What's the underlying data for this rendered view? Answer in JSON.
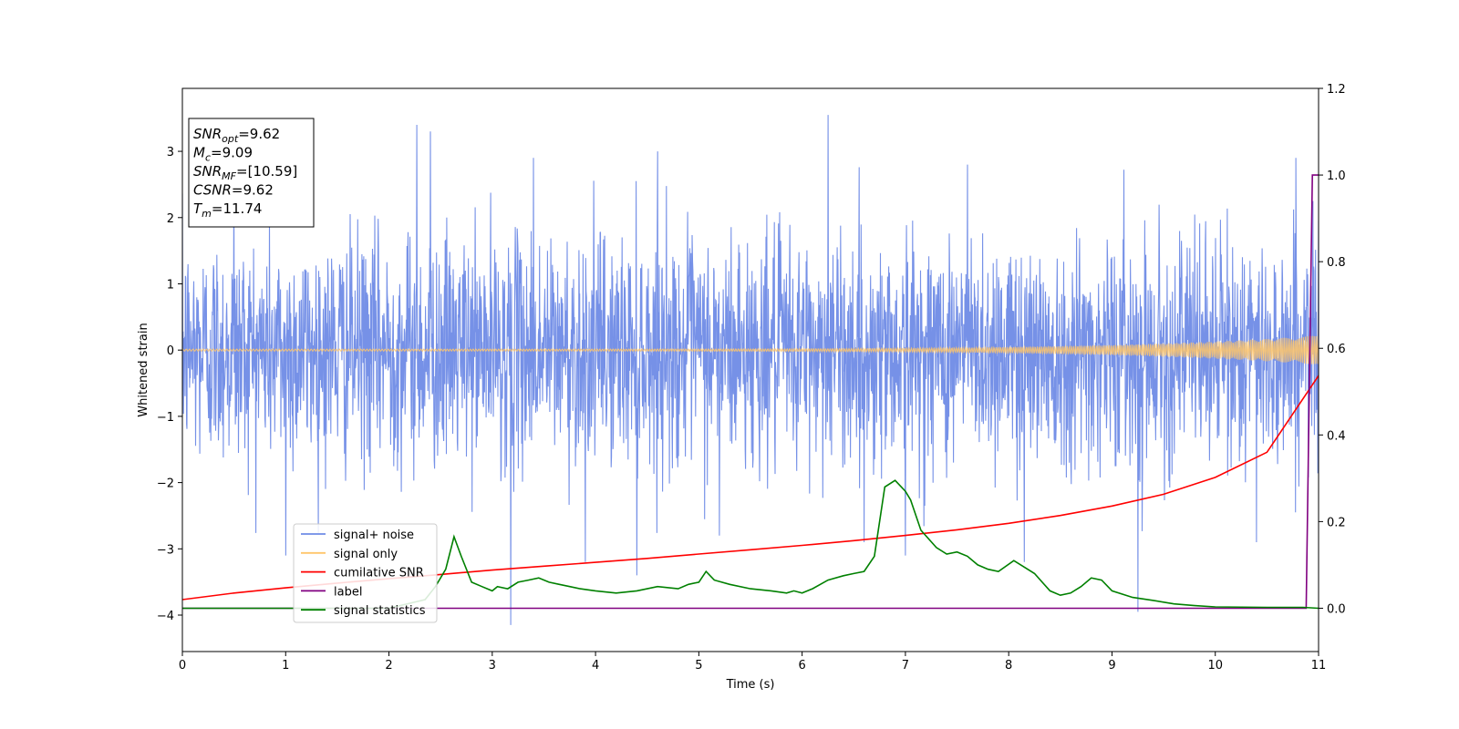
{
  "chart_data": {
    "type": "line",
    "title": "",
    "xlabel": "Time (s)",
    "ylabel": "Whitened strain",
    "y2label": "",
    "xlim": [
      0,
      11
    ],
    "ylim": [
      -4.55,
      3.95
    ],
    "y2lim": [
      -0.1,
      1.2
    ],
    "xticks": [
      "0",
      "1",
      "2",
      "3",
      "4",
      "5",
      "6",
      "7",
      "8",
      "9",
      "10",
      "11"
    ],
    "yticks": [
      "−4",
      "−3",
      "−2",
      "−1",
      "0",
      "1",
      "2",
      "3"
    ],
    "yticks_values": [
      -4,
      -3,
      -2,
      -1,
      0,
      1,
      2,
      3
    ],
    "y2ticks": [
      "0.0",
      "0.2",
      "0.4",
      "0.6",
      "0.8",
      "1.0",
      "1.2"
    ],
    "y2ticks_values": [
      0,
      0.2,
      0.4,
      0.6,
      0.8,
      1.0,
      1.2
    ],
    "grid": false,
    "legend_position": "lower-left",
    "annotation": {
      "lines": [
        {
          "var": "SNR",
          "sub": "opt",
          "text": "=9.62"
        },
        {
          "var": "M",
          "sub": "c",
          "text": "=9.09"
        },
        {
          "var": "SNR",
          "sub": "MF",
          "text": "=[10.59]"
        },
        {
          "var": "CSNR",
          "sub": "",
          "text": "=9.62"
        },
        {
          "var": "T",
          "sub": "m",
          "text": "=11.74"
        }
      ]
    },
    "series": [
      {
        "name": "signal+ noise",
        "axis": "left",
        "color": "#6f8be6",
        "noise_band": [
          -2.4,
          2.4
        ],
        "peaks": [
          [
            0.5,
            2.8
          ],
          [
            1.0,
            2.6
          ],
          [
            2.27,
            3.4
          ],
          [
            2.4,
            3.3
          ],
          [
            3.4,
            2.9
          ],
          [
            4.6,
            3.0
          ],
          [
            6.25,
            3.55
          ],
          [
            7.6,
            2.8
          ],
          [
            10.4,
            3.0
          ],
          [
            10.78,
            2.9
          ]
        ],
        "troughs": [
          [
            1.0,
            -3.1
          ],
          [
            3.18,
            -4.15
          ],
          [
            3.9,
            -3.2
          ],
          [
            4.4,
            -3.4
          ],
          [
            5.2,
            -2.8
          ],
          [
            6.6,
            -2.9
          ],
          [
            7.0,
            -3.1
          ],
          [
            8.15,
            -3.2
          ],
          [
            9.25,
            -3.95
          ],
          [
            10.4,
            -2.9
          ]
        ]
      },
      {
        "name": "signal only",
        "axis": "left",
        "color": "#ffc56a",
        "amplitude_start": 0.015,
        "amplitude_end": 0.22
      },
      {
        "name": "cumilative SNR",
        "axis": "right",
        "color": "#ff0000",
        "x": [
          0,
          0.5,
          1,
          1.5,
          2,
          2.5,
          3,
          3.5,
          4,
          4.5,
          5,
          5.5,
          6,
          6.5,
          7,
          7.5,
          8,
          8.5,
          9,
          9.5,
          10,
          10.5,
          11
        ],
        "y": [
          0.02,
          0.035,
          0.047,
          0.058,
          0.068,
          0.078,
          0.088,
          0.097,
          0.106,
          0.115,
          0.125,
          0.135,
          0.145,
          0.156,
          0.168,
          0.181,
          0.196,
          0.214,
          0.236,
          0.263,
          0.302,
          0.36,
          0.537
        ]
      },
      {
        "name": "label",
        "axis": "right",
        "color": "#800080",
        "x": [
          0,
          10.88,
          10.94,
          11.0
        ],
        "y": [
          0.0,
          0.0,
          1.0,
          1.0
        ]
      },
      {
        "name": "signal statistics",
        "axis": "right",
        "color": "#008000",
        "x": [
          0,
          1,
          2,
          2.35,
          2.45,
          2.55,
          2.63,
          2.7,
          2.8,
          2.9,
          3.0,
          3.05,
          3.15,
          3.25,
          3.35,
          3.45,
          3.55,
          3.65,
          3.75,
          3.85,
          4.0,
          4.2,
          4.4,
          4.6,
          4.8,
          4.9,
          5.0,
          5.07,
          5.15,
          5.3,
          5.5,
          5.7,
          5.85,
          5.92,
          6.0,
          6.1,
          6.25,
          6.4,
          6.5,
          6.6,
          6.7,
          6.8,
          6.9,
          7.0,
          7.05,
          7.15,
          7.3,
          7.4,
          7.5,
          7.6,
          7.7,
          7.8,
          7.9,
          8.05,
          8.15,
          8.25,
          8.4,
          8.5,
          8.6,
          8.7,
          8.8,
          8.9,
          9.0,
          9.2,
          9.4,
          9.6,
          9.8,
          10.0,
          10.5,
          10.85,
          11.0
        ],
        "y": [
          0.0,
          0.0,
          0.0,
          0.02,
          0.05,
          0.09,
          0.165,
          0.12,
          0.06,
          0.05,
          0.04,
          0.05,
          0.045,
          0.06,
          0.065,
          0.07,
          0.06,
          0.055,
          0.05,
          0.045,
          0.04,
          0.035,
          0.04,
          0.05,
          0.045,
          0.055,
          0.06,
          0.085,
          0.065,
          0.055,
          0.045,
          0.04,
          0.035,
          0.04,
          0.035,
          0.045,
          0.065,
          0.075,
          0.08,
          0.085,
          0.12,
          0.28,
          0.295,
          0.27,
          0.25,
          0.18,
          0.14,
          0.125,
          0.13,
          0.12,
          0.1,
          0.09,
          0.085,
          0.11,
          0.095,
          0.08,
          0.04,
          0.03,
          0.035,
          0.05,
          0.07,
          0.065,
          0.04,
          0.025,
          0.018,
          0.01,
          0.006,
          0.003,
          0.002,
          0.002,
          0.0
        ]
      }
    ]
  }
}
